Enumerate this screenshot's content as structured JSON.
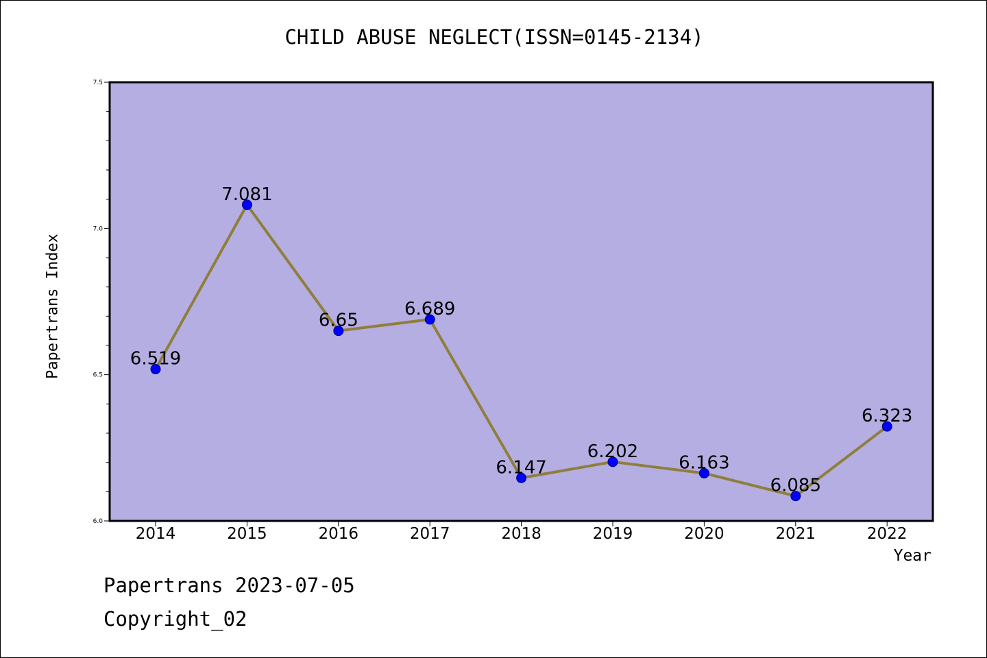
{
  "chart_data": {
    "type": "line",
    "title": "CHILD ABUSE NEGLECT(ISSN=0145-2134)",
    "xlabel": "Year",
    "ylabel": "Papertrans Index",
    "categories": [
      "2014",
      "2015",
      "2016",
      "2017",
      "2018",
      "2019",
      "2020",
      "2021",
      "2022"
    ],
    "series": [
      {
        "values": [
          6.519,
          7.081,
          6.65,
          6.689,
          6.147,
          6.202,
          6.163,
          6.085,
          6.323
        ],
        "labels": [
          "6.519",
          "7.081",
          "6.65",
          "6.689",
          "6.147",
          "6.202",
          "6.163",
          "6.085",
          "6.323"
        ]
      }
    ],
    "ylim": [
      6.0,
      7.5
    ],
    "yticks": [
      "6.0",
      "6.5",
      "7.0",
      "7.5"
    ],
    "grid": false,
    "colors": {
      "plot_background": "#b4aee2",
      "line": "#8f7e3c",
      "marker": "#0000ff"
    }
  },
  "footer": {
    "date": "Papertrans 2023-07-05",
    "copyright": "Copyright_02"
  }
}
